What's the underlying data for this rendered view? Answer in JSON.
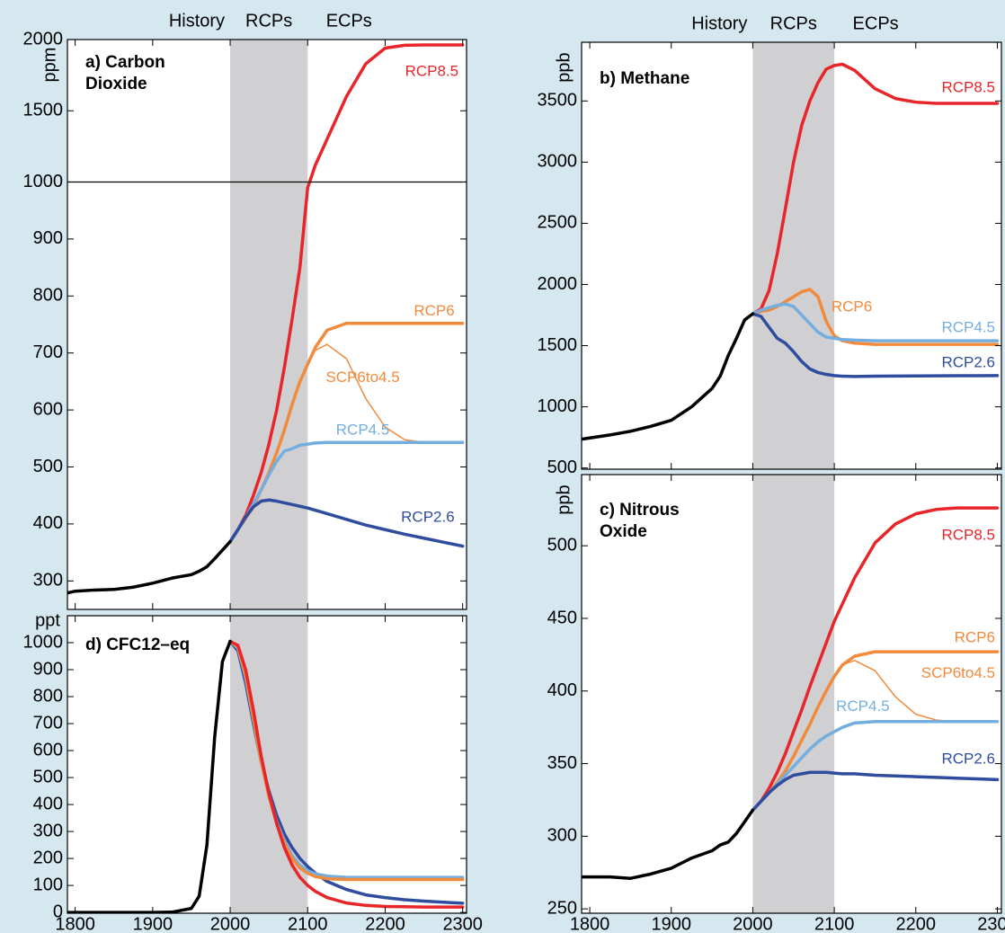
{
  "chart_data": [
    {
      "type": "line",
      "title": [
        "a) Carbon",
        "Dioxide"
      ],
      "ylabel": "ppm",
      "ylabel_rotation": -90,
      "period_labels": [
        "History",
        "RCPs",
        "ECPs"
      ],
      "shade": [
        2000,
        2100
      ],
      "shade_color": "#d0d0d3",
      "xlim": [
        1790,
        2305
      ],
      "xticks": [
        1800,
        1900,
        2000,
        2100,
        2200,
        2300
      ],
      "show_xtick_labels": false,
      "ylim": [
        250,
        2000
      ],
      "ybreak": 1000,
      "yticks": [
        300,
        400,
        500,
        600,
        700,
        800,
        900,
        1000,
        1500,
        2000
      ],
      "linewidth": 3.5,
      "x": [
        1790,
        1800,
        1825,
        1850,
        1875,
        1900,
        1925,
        1950,
        1960,
        1970,
        1980,
        1990,
        2000,
        2010,
        2020,
        2030,
        2040,
        2050,
        2060,
        2070,
        2080,
        2090,
        2100,
        2110,
        2125,
        2150,
        2175,
        2200,
        2225,
        2250,
        2275,
        2300
      ],
      "series": [
        {
          "color": "#000000",
          "values": [
            279,
            282,
            284,
            285,
            289,
            296,
            305,
            311,
            317,
            325,
            339,
            354,
            369,
            null,
            null,
            null,
            null,
            null,
            null,
            null,
            null,
            null,
            null,
            null,
            null,
            null,
            null,
            null,
            null,
            null,
            null,
            null
          ]
        },
        {
          "name": "RCP8.5",
          "color": "#e8262a",
          "values": [
            null,
            null,
            null,
            null,
            null,
            null,
            null,
            null,
            null,
            null,
            null,
            null,
            369,
            390,
            415,
            450,
            490,
            540,
            600,
            675,
            760,
            850,
            990,
            1120,
            1300,
            1600,
            1830,
            1940,
            1960,
            1962,
            1962,
            1962
          ]
        },
        {
          "name": "RCP6",
          "color": "#f28a3c",
          "values": [
            null,
            null,
            null,
            null,
            null,
            null,
            null,
            null,
            null,
            null,
            null,
            null,
            369,
            390,
            410,
            430,
            460,
            490,
            525,
            565,
            610,
            650,
            680,
            710,
            740,
            752,
            752,
            752,
            752,
            752,
            752,
            752
          ]
        },
        {
          "name": "SCP6to4.5",
          "color": "#f28a3c",
          "linewidth": 1.5,
          "values": [
            null,
            null,
            null,
            null,
            null,
            null,
            null,
            null,
            null,
            null,
            null,
            null,
            null,
            null,
            null,
            null,
            null,
            null,
            null,
            null,
            null,
            null,
            680,
            705,
            715,
            690,
            620,
            570,
            548,
            543,
            543,
            543
          ]
        },
        {
          "name": "RCP4.5",
          "color": "#74aee0",
          "values": [
            null,
            null,
            null,
            null,
            null,
            null,
            null,
            null,
            null,
            null,
            null,
            null,
            369,
            390,
            412,
            435,
            460,
            486,
            510,
            528,
            532,
            538,
            540,
            542,
            543,
            543,
            543,
            543,
            543,
            543,
            543,
            543
          ]
        },
        {
          "name": "RCP2.6",
          "color": "#2f4c9f",
          "values": [
            null,
            null,
            null,
            null,
            null,
            null,
            null,
            null,
            null,
            null,
            null,
            null,
            369,
            390,
            412,
            430,
            440,
            442,
            440,
            437,
            434,
            431,
            428,
            424,
            418,
            408,
            398,
            390,
            382,
            375,
            368,
            361
          ]
        }
      ]
    },
    {
      "type": "line",
      "title": [
        "b) Methane"
      ],
      "ylabel": "ppb",
      "ylabel_rotation": -90,
      "period_labels": [
        "History",
        "RCPs",
        "ECPs"
      ],
      "shade": [
        2000,
        2100
      ],
      "shade_color": "#d0d0d3",
      "xlim": [
        1790,
        2305
      ],
      "xticks": [
        1800,
        1900,
        2000,
        2100,
        2200,
        2300
      ],
      "show_xtick_labels": false,
      "ylim": [
        490,
        3980
      ],
      "yticks": [
        500,
        1000,
        1500,
        2000,
        2500,
        3000,
        3500
      ],
      "linewidth": 3.5,
      "x": [
        1790,
        1800,
        1825,
        1850,
        1875,
        1900,
        1925,
        1950,
        1960,
        1970,
        1980,
        1990,
        2000,
        2010,
        2020,
        2030,
        2040,
        2050,
        2060,
        2070,
        2080,
        2090,
        2100,
        2110,
        2125,
        2150,
        2175,
        2200,
        2225,
        2250,
        2275,
        2300
      ],
      "series": [
        {
          "color": "#000000",
          "values": [
            735,
            745,
            770,
            800,
            840,
            890,
            1000,
            1150,
            1250,
            1420,
            1560,
            1710,
            1760,
            null,
            null,
            null,
            null,
            null,
            null,
            null,
            null,
            null,
            null,
            null,
            null,
            null,
            null,
            null,
            null,
            null,
            null,
            null
          ]
        },
        {
          "name": "RCP8.5",
          "color": "#e8262a",
          "values": [
            null,
            null,
            null,
            null,
            null,
            null,
            null,
            null,
            null,
            null,
            null,
            null,
            1760,
            1800,
            1950,
            2250,
            2620,
            3000,
            3300,
            3500,
            3650,
            3760,
            3790,
            3800,
            3750,
            3600,
            3520,
            3490,
            3480,
            3480,
            3480,
            3480
          ]
        },
        {
          "name": "RCP6",
          "color": "#f28a3c",
          "values": [
            null,
            null,
            null,
            null,
            null,
            null,
            null,
            null,
            null,
            null,
            null,
            null,
            1760,
            1780,
            1790,
            1820,
            1860,
            1900,
            1940,
            1960,
            1900,
            1700,
            1580,
            1540,
            1520,
            1510,
            1510,
            1510,
            1510,
            1510,
            1510,
            1510
          ]
        },
        {
          "name": "RCP4.5",
          "color": "#74aee0",
          "values": [
            null,
            null,
            null,
            null,
            null,
            null,
            null,
            null,
            null,
            null,
            null,
            null,
            1760,
            1790,
            1810,
            1830,
            1840,
            1820,
            1750,
            1680,
            1610,
            1570,
            1560,
            1550,
            1545,
            1540,
            1540,
            1540,
            1540,
            1540,
            1540,
            1540
          ]
        },
        {
          "name": "RCP2.6",
          "color": "#2f4c9f",
          "values": [
            null,
            null,
            null,
            null,
            null,
            null,
            null,
            null,
            null,
            null,
            null,
            null,
            1760,
            1740,
            1650,
            1560,
            1520,
            1450,
            1370,
            1310,
            1280,
            1265,
            1255,
            1250,
            1248,
            1250,
            1251,
            1252,
            1253,
            1254,
            1254,
            1255
          ]
        }
      ]
    },
    {
      "type": "line",
      "title": [
        "c) Nitrous",
        "Oxide"
      ],
      "ylabel": "ppb",
      "ylabel_rotation": -90,
      "shade": [
        2000,
        2100
      ],
      "shade_color": "#d0d0d3",
      "xlim": [
        1790,
        2305
      ],
      "xticks": [
        1800,
        1900,
        2000,
        2100,
        2200,
        2300
      ],
      "show_xtick_labels": true,
      "ylim": [
        247,
        549
      ],
      "yticks": [
        250,
        300,
        350,
        400,
        450,
        500
      ],
      "linewidth": 3.5,
      "x": [
        1790,
        1800,
        1825,
        1850,
        1875,
        1900,
        1925,
        1950,
        1960,
        1970,
        1980,
        1990,
        2000,
        2010,
        2020,
        2030,
        2040,
        2050,
        2060,
        2070,
        2080,
        2090,
        2100,
        2110,
        2125,
        2150,
        2175,
        2200,
        2225,
        2250,
        2275,
        2300
      ],
      "series": [
        {
          "color": "#000000",
          "values": [
            272,
            272,
            272,
            271,
            274,
            278,
            285,
            290,
            294,
            296,
            302,
            310,
            318,
            null,
            null,
            null,
            null,
            null,
            null,
            null,
            null,
            null,
            null,
            null,
            null,
            null,
            null,
            null,
            null,
            null,
            null,
            null
          ]
        },
        {
          "name": "RCP8.5",
          "color": "#e8262a",
          "values": [
            null,
            null,
            null,
            null,
            null,
            null,
            null,
            null,
            null,
            null,
            null,
            null,
            318,
            324,
            333,
            344,
            357,
            372,
            387,
            403,
            418,
            433,
            448,
            460,
            478,
            502,
            515,
            522,
            525,
            526,
            526,
            526
          ]
        },
        {
          "name": "RCP6",
          "color": "#f28a3c",
          "values": [
            null,
            null,
            null,
            null,
            null,
            null,
            null,
            null,
            null,
            null,
            null,
            null,
            318,
            324,
            330,
            337,
            345,
            355,
            366,
            377,
            389,
            400,
            410,
            418,
            424,
            427,
            427,
            427,
            427,
            427,
            427,
            427
          ]
        },
        {
          "name": "SCP6to4.5",
          "color": "#f28a3c",
          "linewidth": 1.5,
          "values": [
            null,
            null,
            null,
            null,
            null,
            null,
            null,
            null,
            null,
            null,
            null,
            null,
            null,
            null,
            null,
            null,
            null,
            null,
            null,
            null,
            null,
            null,
            410,
            418,
            421,
            414,
            396,
            384,
            380,
            379,
            379,
            379
          ]
        },
        {
          "name": "RCP4.5",
          "color": "#74aee0",
          "values": [
            null,
            null,
            null,
            null,
            null,
            null,
            null,
            null,
            null,
            null,
            null,
            null,
            318,
            324,
            330,
            336,
            342,
            348,
            354,
            360,
            365,
            369,
            372,
            375,
            378,
            379,
            379,
            379,
            379,
            379,
            379,
            379
          ]
        },
        {
          "name": "RCP2.6",
          "color": "#2f4c9f",
          "values": [
            null,
            null,
            null,
            null,
            null,
            null,
            null,
            null,
            null,
            null,
            null,
            null,
            318,
            324,
            330,
            335,
            339,
            342,
            343,
            344,
            344,
            344,
            343.5,
            343,
            343,
            342,
            341.5,
            341,
            340.5,
            340,
            339.5,
            339
          ]
        }
      ]
    },
    {
      "type": "line",
      "title": [
        "d) CFC12–eq"
      ],
      "ylabel": "ppt",
      "ylabel_rotation": 0,
      "shade": [
        2000,
        2100
      ],
      "shade_color": "#d0d0d3",
      "xlim": [
        1790,
        2305
      ],
      "xticks": [
        1800,
        1900,
        2000,
        2100,
        2200,
        2300
      ],
      "show_xtick_labels": true,
      "ylim": [
        -3,
        1100
      ],
      "yticks": [
        0,
        100,
        200,
        300,
        400,
        500,
        600,
        700,
        800,
        900,
        1000
      ],
      "linewidth": 3.5,
      "x": [
        1790,
        1800,
        1825,
        1850,
        1875,
        1900,
        1925,
        1950,
        1960,
        1970,
        1980,
        1990,
        2000,
        2010,
        2020,
        2030,
        2040,
        2050,
        2060,
        2070,
        2080,
        2090,
        2100,
        2110,
        2125,
        2150,
        2175,
        2200,
        2225,
        2250,
        2275,
        2300
      ],
      "series": [
        {
          "color": "#000000",
          "values": [
            0,
            0,
            0,
            0,
            0,
            0,
            1,
            15,
            60,
            250,
            650,
            930,
            1005,
            null,
            null,
            null,
            null,
            null,
            null,
            null,
            null,
            null,
            null,
            null,
            null,
            null,
            null,
            null,
            null,
            null,
            null,
            null
          ]
        },
        {
          "color": "#2f4c9f",
          "values": [
            null,
            null,
            null,
            null,
            null,
            null,
            null,
            null,
            null,
            null,
            null,
            null,
            1005,
            970,
            850,
            700,
            560,
            450,
            360,
            290,
            240,
            200,
            170,
            145,
            115,
            85,
            65,
            55,
            47,
            42,
            38,
            34
          ]
        },
        {
          "color": "#74aee0",
          "values": [
            null,
            null,
            null,
            null,
            null,
            null,
            null,
            null,
            null,
            null,
            null,
            null,
            1005,
            980,
            870,
            715,
            560,
            435,
            335,
            265,
            210,
            175,
            155,
            143,
            135,
            130,
            130,
            130,
            130,
            130,
            130,
            130
          ]
        },
        {
          "color": "#f28a3c",
          "values": [
            null,
            null,
            null,
            null,
            null,
            null,
            null,
            null,
            null,
            null,
            null,
            null,
            1005,
            985,
            880,
            720,
            560,
            430,
            330,
            255,
            200,
            165,
            145,
            133,
            125,
            122,
            122,
            122,
            122,
            122,
            122,
            122
          ]
        },
        {
          "color": "#e8262a",
          "values": [
            null,
            null,
            null,
            null,
            null,
            null,
            null,
            null,
            null,
            null,
            null,
            null,
            1005,
            990,
            900,
            750,
            580,
            440,
            330,
            240,
            175,
            130,
            100,
            78,
            55,
            35,
            26,
            22,
            21,
            20,
            20,
            20
          ]
        }
      ]
    }
  ]
}
